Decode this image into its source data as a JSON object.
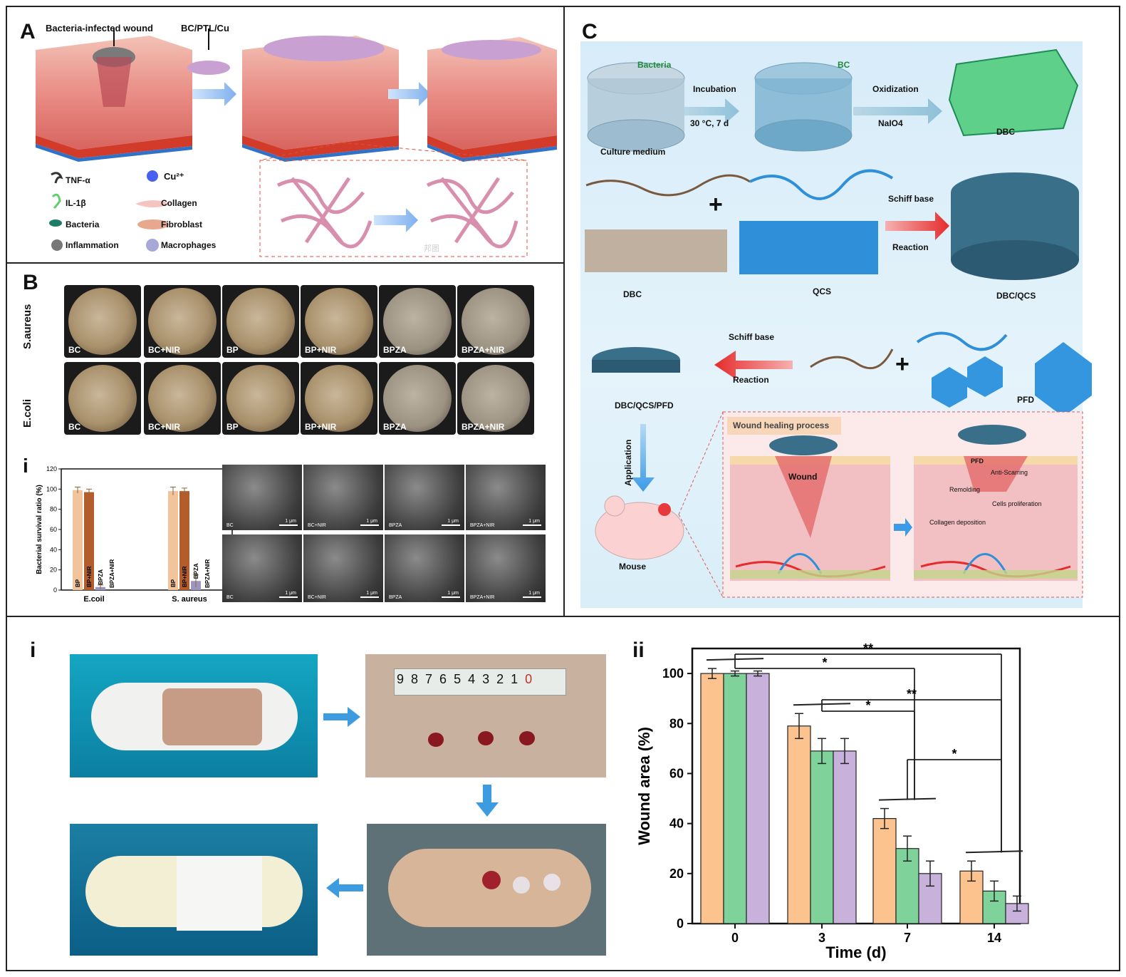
{
  "panelA": {
    "label": "A",
    "infected_wound": "Bacteria-infected wound",
    "material": "BC/PTL/Cu",
    "legend": [
      "TNF-α",
      "IL-1β",
      "Bacteria",
      "Inflammation",
      "Cu²⁺",
      "Collagen",
      "Fibroblast",
      "Macrophages"
    ],
    "watermark": "邦图"
  },
  "panelB": {
    "label": "B",
    "row_labels": [
      "S.aureus",
      "E.coli"
    ],
    "plate_labels": [
      "BC",
      "BC+NIR",
      "BP",
      "BP+NIR",
      "BPZA",
      "BPZA+NIR"
    ],
    "sub_label": "i",
    "sem_labels_top": [
      "BC",
      "BC+NIR",
      "BPZA",
      "BPZA+NIR"
    ],
    "sem_labels_bottom": [
      "BC",
      "BC+NIR",
      "BPZA",
      "BPZA+NIR"
    ],
    "sem_scale": "1 μm"
  },
  "panelC": {
    "label": "C",
    "bacteria": "Bacteria",
    "bc": "BC",
    "culture_medium": "Culture medium",
    "incubation": "Incubation",
    "incubation_cond": "30 °C,  7 d",
    "oxidization": "Oxidization",
    "naio4": "NaIO4",
    "dbc": "DBC",
    "plus": "+",
    "schiff1": "Schiff base",
    "reaction1": "Reaction",
    "dbc2": "DBC",
    "qcs": "QCS",
    "dbc_qcs": "DBC/QCS",
    "schiff2": "Schiff base",
    "reaction2": "Reaction",
    "pfd": "PFD",
    "dbc_qcs_pfd": "DBC/QCS/PFD",
    "application": "Application",
    "mouse": "Mouse",
    "healing_title": "Wound healing process",
    "wound": "Wound",
    "pfd2": "PFD",
    "anti_scarring": "Anti-Scarring",
    "remolding": "Remolding",
    "cells_prolif": "Cells proliferation",
    "collagen_dep": "Collagen deposition"
  },
  "panelD": {
    "label_i": "i",
    "label_ii": "ii",
    "ruler_digits": [
      "9",
      "8",
      "7",
      "6",
      "5",
      "4",
      "3",
      "2",
      "1",
      "0"
    ]
  },
  "chart_data": [
    {
      "type": "bar",
      "categories": [
        "E.coil",
        "S. aureus"
      ],
      "series": [
        {
          "name": "BP",
          "values": [
            99,
            98
          ]
        },
        {
          "name": "BP+NIR",
          "values": [
            97,
            98
          ]
        },
        {
          "name": "BPZA",
          "values": [
            3,
            9
          ]
        },
        {
          "name": "BPZA+NIR",
          "values": [
            0,
            0
          ]
        }
      ],
      "errors": [
        [
          3,
          4
        ],
        [
          3,
          3
        ],
        [
          2,
          6
        ],
        [
          0,
          0
        ]
      ],
      "ylabel": "Bacterial survival ratio (%)",
      "ylim": [
        0,
        120
      ],
      "yticks": [
        0,
        20,
        40,
        60,
        80,
        100,
        120
      ],
      "colors": [
        "#f2c49b",
        "#b35d2c",
        "#9d94bf",
        "#9d94bf"
      ]
    },
    {
      "type": "bar",
      "categories": [
        "0",
        "3",
        "7",
        "14"
      ],
      "series": [
        {
          "values": [
            100,
            79,
            42,
            21
          ]
        },
        {
          "values": [
            100,
            69,
            30,
            13
          ]
        },
        {
          "values": [
            100,
            69,
            20,
            8
          ]
        }
      ],
      "errors": [
        [
          2,
          5,
          4,
          4
        ],
        [
          1,
          5,
          5,
          4
        ],
        [
          1,
          5,
          5,
          3
        ]
      ],
      "xlabel": "Time (d)",
      "ylabel": "Wound area (%)",
      "ylim": [
        0,
        110
      ],
      "yticks": [
        0,
        20,
        40,
        60,
        80,
        100
      ],
      "significance": [
        "**",
        "*",
        "**",
        "*",
        "*"
      ],
      "colors": [
        "#fcc38f",
        "#7fd39a",
        "#c8b2dc"
      ]
    }
  ]
}
